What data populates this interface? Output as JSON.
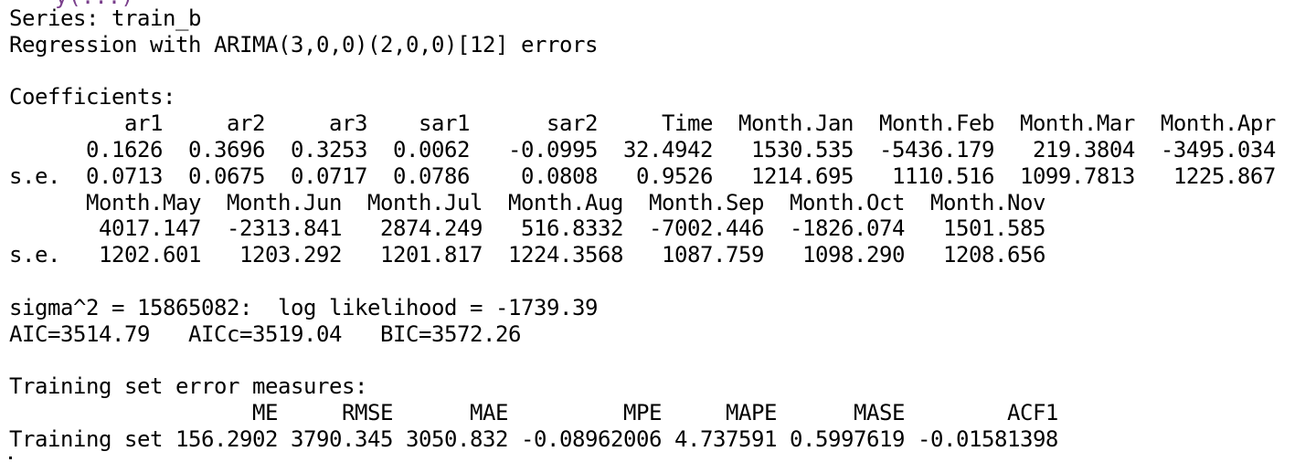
{
  "console": {
    "top_fragment": "y(...)",
    "lines": [
      "Series: train_b",
      "Regression with ARIMA(3,0,0)(2,0,0)[12] errors",
      "",
      "Coefficients:",
      "         ar1     ar2     ar3    sar1      sar2     Time  Month.Jan  Month.Feb  Month.Mar  Month.Apr",
      "      0.1626  0.3696  0.3253  0.0062   -0.0995  32.4942   1530.535  -5436.179   219.3804  -3495.034",
      "s.e.  0.0713  0.0675  0.0717  0.0786    0.0808   0.9526   1214.695   1110.516  1099.7813   1225.867",
      "      Month.May  Month.Jun  Month.Jul  Month.Aug  Month.Sep  Month.Oct  Month.Nov",
      "       4017.147  -2313.841   2874.249   516.8332  -7002.446  -1826.074   1501.585",
      "s.e.   1202.601   1203.292   1201.817  1224.3568   1087.759   1098.290   1208.656",
      "",
      "sigma^2 = 15865082:  log likelihood = -1739.39",
      "AIC=3514.79   AICc=3519.04   BIC=3572.26",
      "",
      "Training set error measures:",
      "                   ME     RMSE      MAE         MPE     MAPE      MASE        ACF1",
      "Training set 156.2902 3790.345 3050.832 -0.08962006 4.737591 0.5997619 -0.01581398"
    ]
  }
}
